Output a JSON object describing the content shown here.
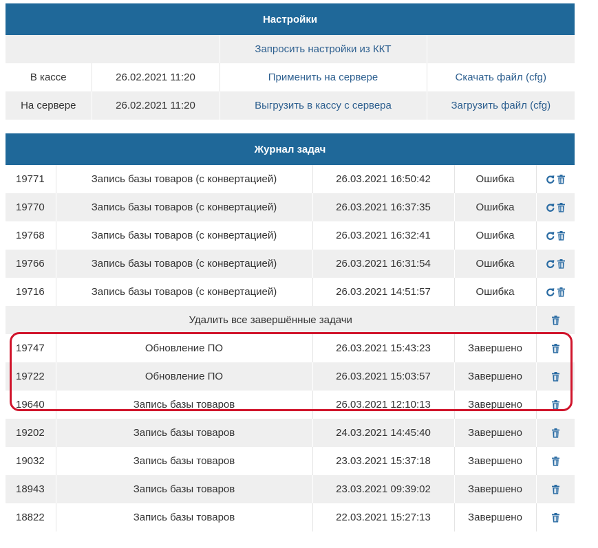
{
  "settings": {
    "title": "Настройки",
    "request_button": "Запросить настройки из ККТ",
    "rows": [
      {
        "label": "В кассе",
        "date": "26.02.2021 11:20",
        "action": "Применить на сервере",
        "file_action": "Скачать файл (cfg)"
      },
      {
        "label": "На сервере",
        "date": "26.02.2021 11:20",
        "action": "Выгрузить в кассу с сервера",
        "file_action": "Загрузить файл (cfg)"
      }
    ]
  },
  "journal": {
    "title": "Журнал задач",
    "delete_all_label": "Удалить все завершённые задачи",
    "error_tasks": [
      {
        "id": "19771",
        "name": "Запись базы товаров (с конвертацией)",
        "datetime": "26.03.2021 16:50:42",
        "status": "Ошибка"
      },
      {
        "id": "19770",
        "name": "Запись базы товаров (с конвертацией)",
        "datetime": "26.03.2021 16:37:35",
        "status": "Ошибка"
      },
      {
        "id": "19768",
        "name": "Запись базы товаров (с конвертацией)",
        "datetime": "26.03.2021 16:32:41",
        "status": "Ошибка"
      },
      {
        "id": "19766",
        "name": "Запись базы товаров (с конвертацией)",
        "datetime": "26.03.2021 16:31:54",
        "status": "Ошибка"
      },
      {
        "id": "19716",
        "name": "Запись базы товаров (с конвертацией)",
        "datetime": "26.03.2021 14:51:57",
        "status": "Ошибка"
      }
    ],
    "done_tasks": [
      {
        "id": "19747",
        "name": "Обновление ПО",
        "datetime": "26.03.2021 15:43:23",
        "status": "Завершено"
      },
      {
        "id": "19722",
        "name": "Обновление ПО",
        "datetime": "26.03.2021 15:03:57",
        "status": "Завершено"
      },
      {
        "id": "19640",
        "name": "Запись базы товаров",
        "datetime": "26.03.2021 12:10:13",
        "status": "Завершено"
      },
      {
        "id": "19202",
        "name": "Запись базы товаров",
        "datetime": "24.03.2021 14:45:40",
        "status": "Завершено"
      },
      {
        "id": "19032",
        "name": "Запись базы товаров",
        "datetime": "23.03.2021 15:37:18",
        "status": "Завершено"
      },
      {
        "id": "18943",
        "name": "Запись базы товаров",
        "datetime": "23.03.2021 09:39:02",
        "status": "Завершено"
      },
      {
        "id": "18822",
        "name": "Запись базы товаров",
        "datetime": "22.03.2021 15:27:13",
        "status": "Завершено"
      }
    ]
  },
  "colors": {
    "header": "#1f6899",
    "link": "#2d5f8f",
    "icon": "#2b6ca3",
    "highlight": "#d0142b"
  },
  "icons": {
    "retry": "refresh-icon",
    "delete": "trash-icon"
  }
}
